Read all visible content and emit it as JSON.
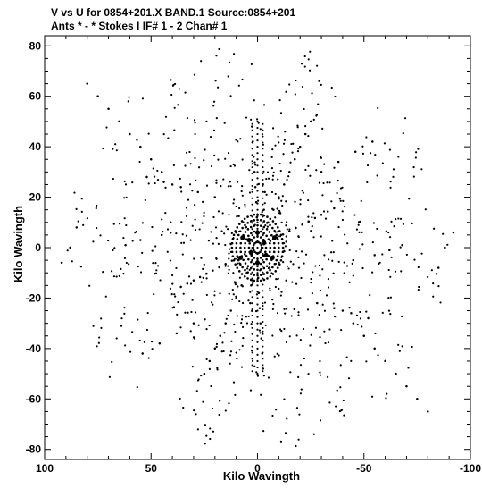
{
  "header": {
    "line1": "V vs U for 0854+201.X BAND.1   Source:0854+201",
    "line2": "Ants * - *    Stokes I  IF# 1 - 2  Chan# 1"
  },
  "chart_data": {
    "type": "scatter",
    "title": "V vs U for 0854+201.X BAND.1   Source:0854+201",
    "subtitle": "Ants * - *    Stokes I  IF# 1 - 2  Chan# 1",
    "xlabel": "Kilo Wavingth",
    "ylabel": "Kilo Wavingth",
    "xlim": [
      100,
      -100
    ],
    "ylim": [
      -84,
      84
    ],
    "xticks": [
      100,
      50,
      0,
      -50,
      -100
    ],
    "xtick_labels": [
      "100",
      "50",
      "0",
      "-50",
      "-100"
    ],
    "yticks": [
      -80,
      -60,
      -40,
      -20,
      0,
      20,
      40,
      60,
      80
    ],
    "ytick_labels": [
      "-80",
      "-60",
      "-40",
      "-20",
      "0",
      "20",
      "40",
      "60",
      "80"
    ],
    "grid": false,
    "marker_color": "#000000",
    "points_description": "u-v coverage: point-symmetric (u,v) and (-u,-v) tracks, dense near origin with concentric rings, arms along diagonals, extent about |u|<95, |v|<80",
    "ring_radii": [
      2,
      4,
      6,
      8,
      10,
      12
    ],
    "points_x": [
      3.0,
      6.0,
      9.0,
      12.0,
      15.0,
      18.0,
      21.0,
      24.0,
      27.0,
      30.0,
      33.0,
      36.0,
      -3.0,
      -6.0,
      -9.0,
      -12.0,
      -15.0,
      -18.0,
      -21.0,
      -24.0,
      -27.0,
      -30.0,
      -33.0,
      -36.0,
      2.5,
      5.0,
      7.5,
      10.0,
      12.5,
      15.0,
      17.5,
      20.0,
      22.5,
      25.0,
      -2.5,
      -5.0,
      -7.5,
      -10.0,
      -12.5,
      -15.0,
      -17.5,
      -20.0,
      -22.5,
      -25.0,
      0.3,
      0.6,
      1.0,
      1.4,
      1.8,
      2.2,
      2.6,
      3.0,
      3.4,
      -0.3,
      -0.6,
      -1.0,
      -1.4,
      -1.8,
      -2.2,
      -2.6,
      -3.0,
      -3.4,
      40.0,
      45.0,
      50.0,
      55.0,
      60.0,
      65.0,
      70.0,
      75.0,
      80.0,
      -40.0,
      -45.0,
      -50.0,
      -55.0,
      -60.0,
      -65.0,
      -70.0,
      -75.0,
      -80.0,
      20.0,
      28.0,
      36.0,
      44.0,
      52.0,
      -20.0,
      -28.0,
      -36.0,
      -44.0,
      -52.0,
      30.0,
      38.0,
      46.0,
      54.0,
      -30.0,
      -38.0,
      -46.0,
      -54.0,
      45.0,
      55.0,
      62.0,
      68.0,
      -45.0,
      -55.0,
      -62.0,
      -68.0,
      85.0,
      88.0,
      92.0,
      -85.0,
      -88.0,
      -92.0
    ],
    "points_y": [
      -1.3,
      -2.6,
      -3.9,
      -5.2,
      -6.5,
      -7.8,
      -9.1,
      -10.4,
      -11.7,
      -13.0,
      -14.3,
      -15.6,
      1.3,
      2.6,
      3.9,
      5.2,
      6.5,
      7.8,
      9.1,
      10.4,
      11.7,
      13.0,
      14.3,
      15.6,
      -5.0,
      -10.0,
      -15.0,
      -20.0,
      -25.0,
      -30.0,
      -35.0,
      -40.0,
      -45.0,
      -50.0,
      5.0,
      10.0,
      15.0,
      20.0,
      25.0,
      30.0,
      35.0,
      40.0,
      45.0,
      50.0,
      12.0,
      18.0,
      24.0,
      30.0,
      36.0,
      42.0,
      48.0,
      -15.0,
      -22.0,
      -12.0,
      -18.0,
      -24.0,
      -30.0,
      -36.0,
      -42.0,
      -48.0,
      15.0,
      22.0,
      25.0,
      30.0,
      35.0,
      40.0,
      45.0,
      50.0,
      55.0,
      60.0,
      65.0,
      -25.0,
      -30.0,
      -35.0,
      -40.0,
      -45.0,
      -50.0,
      -55.0,
      -60.0,
      -65.0,
      20.0,
      22.0,
      24.0,
      26.0,
      28.0,
      -20.0,
      -22.0,
      -24.0,
      -26.0,
      -28.0,
      -30.0,
      -34.0,
      -38.0,
      -42.0,
      30.0,
      34.0,
      38.0,
      42.0,
      5.0,
      3.0,
      1.0,
      -1.0,
      -5.0,
      -3.0,
      -1.0,
      1.0,
      8.0,
      0.0,
      -6.0,
      -8.0,
      0.0,
      6.0
    ]
  }
}
